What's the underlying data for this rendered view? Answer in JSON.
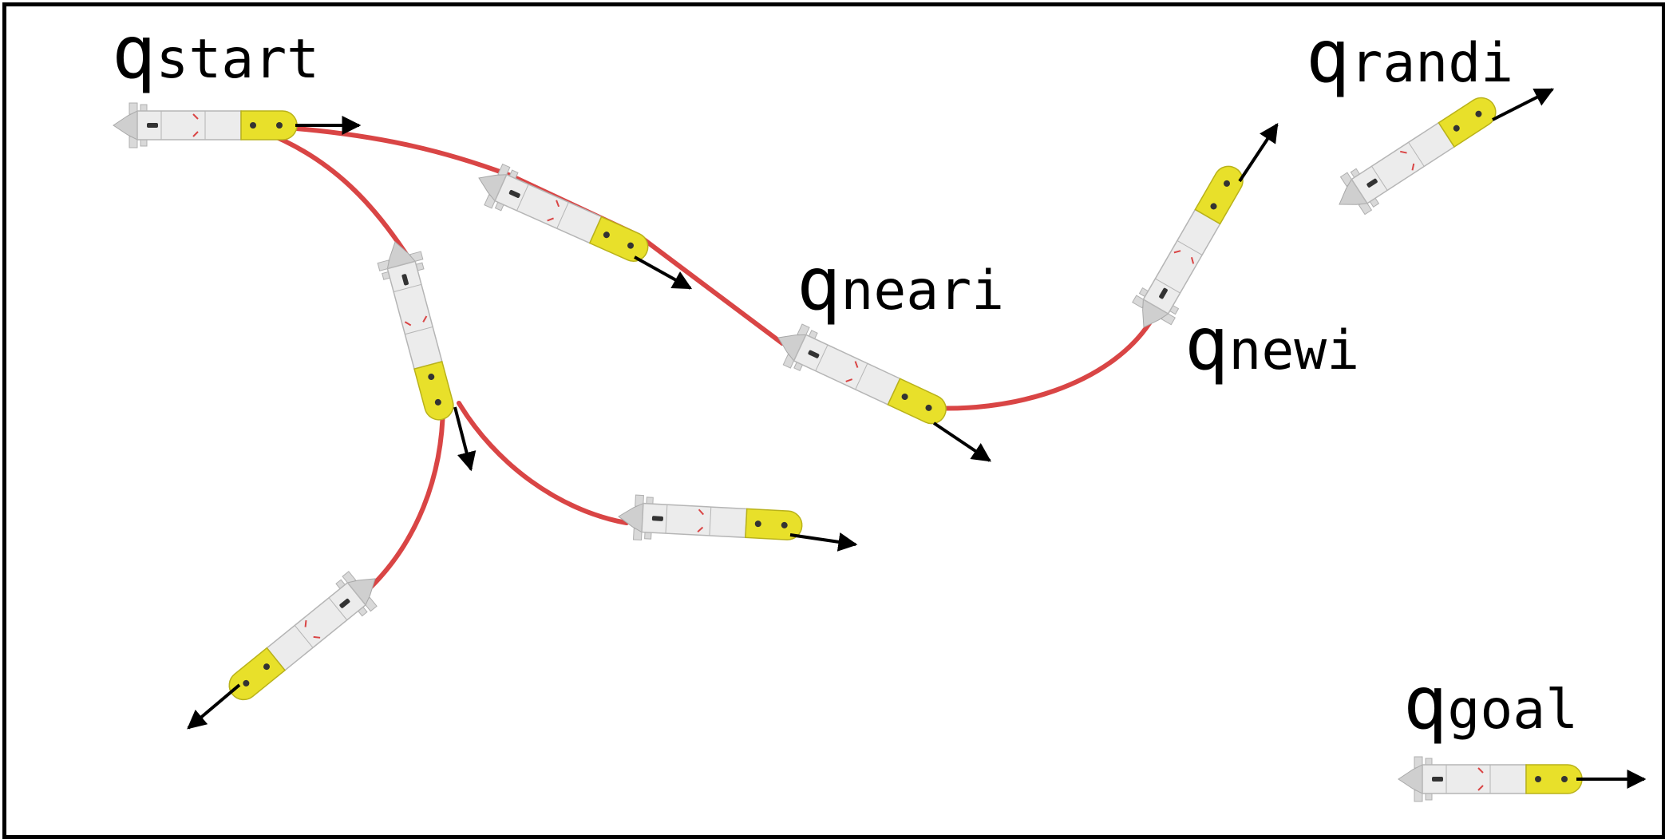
{
  "colors": {
    "path": "#d94545",
    "frame": "#000000",
    "auv_body": "#e8e8e8",
    "auv_tail": "#e8e02a",
    "arrow": "#000000"
  },
  "labels": {
    "start": {
      "q": "q",
      "sub": "start"
    },
    "near": {
      "q": "q",
      "sub": "neari"
    },
    "new": {
      "q": "q",
      "sub": "newi"
    },
    "rand": {
      "q": "q",
      "sub": "randi"
    },
    "goal": {
      "q": "q",
      "sub": "goal"
    }
  },
  "icons": [
    "auv-vehicle-icon",
    "heading-arrow-icon"
  ]
}
